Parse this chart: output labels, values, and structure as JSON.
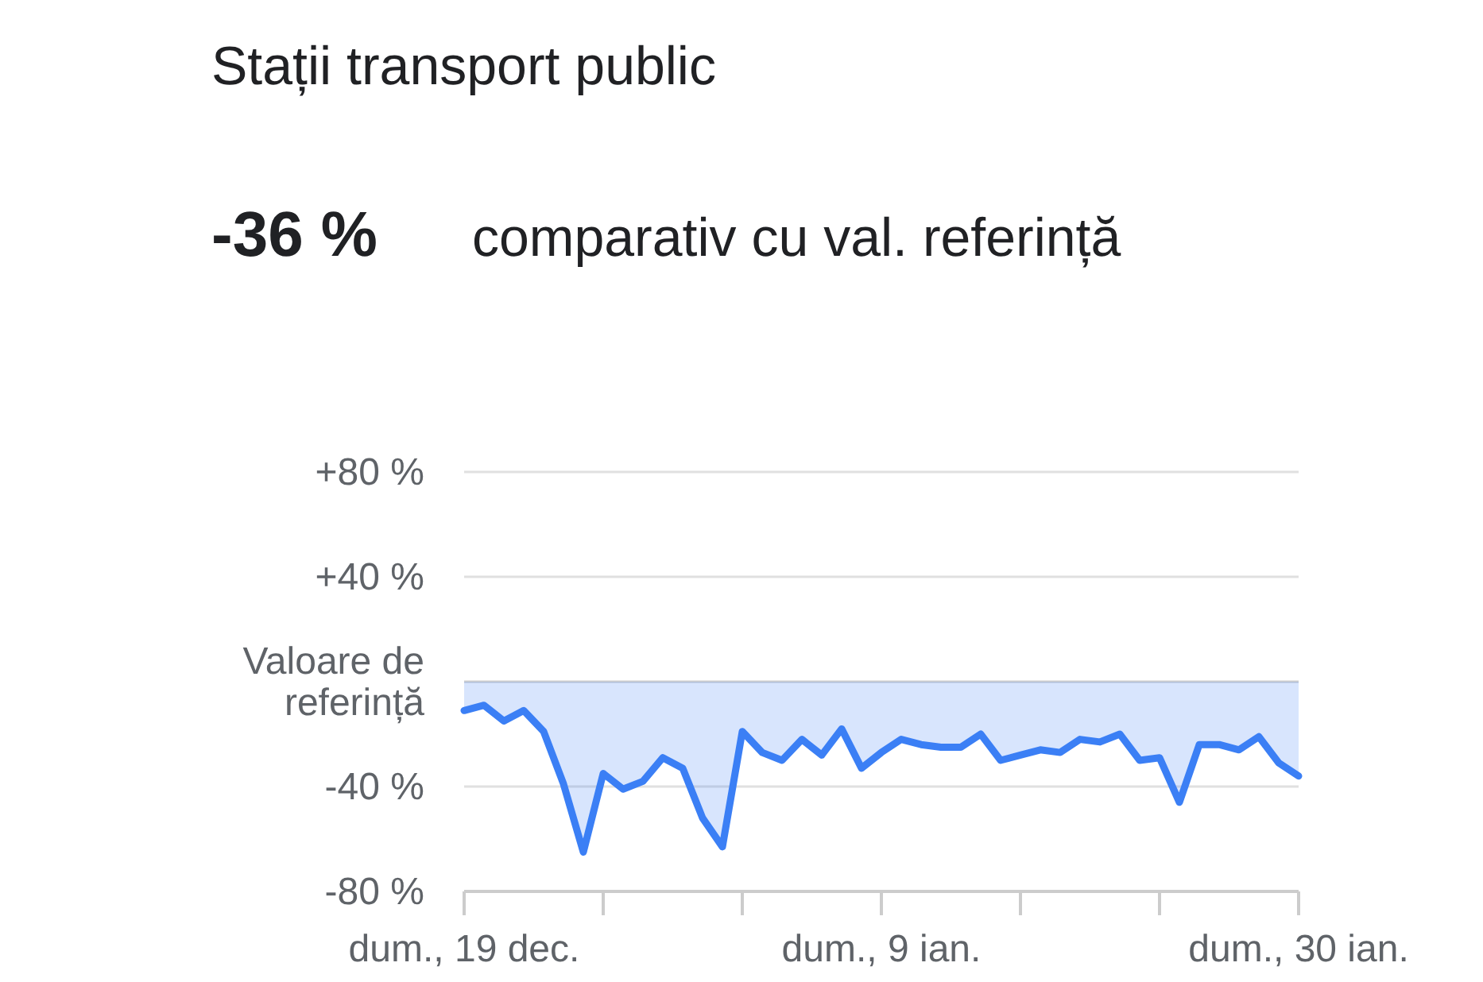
{
  "chart_data": {
    "type": "area",
    "title": "Stații transport public",
    "subtitle": "comparativ cu val. referință",
    "annotations": [
      "-36 %"
    ],
    "categories": [
      "dum., 19 dec.",
      null,
      null,
      null,
      null,
      null,
      null,
      null,
      null,
      null,
      null,
      null,
      null,
      null,
      null,
      null,
      null,
      null,
      null,
      null,
      null,
      "dum., 9 ian.",
      null,
      null,
      null,
      null,
      null,
      null,
      null,
      null,
      null,
      null,
      null,
      null,
      null,
      null,
      null,
      null,
      null,
      null,
      null,
      null,
      "dum., 30 ian."
    ],
    "series": [
      {
        "color": "#3b7ff5",
        "values": [
          -11,
          -9,
          -15,
          -11,
          -19,
          -39,
          -65,
          -35,
          -41,
          -38,
          -29,
          -33,
          -52,
          -63,
          -19,
          -27,
          -30,
          -22,
          -28,
          -18,
          -33,
          -27,
          -22,
          -24,
          -25,
          -25,
          -20,
          -30,
          -28,
          -26,
          -27,
          -22,
          -23,
          -20,
          -30,
          -29,
          -46,
          -24,
          -24,
          -26,
          -21,
          -31,
          -36
        ]
      }
    ],
    "ylim": [
      -80,
      80
    ],
    "yticks": [
      {
        "value": -80,
        "label": "-80 %"
      },
      {
        "value": -40,
        "label": "-40 %"
      },
      {
        "value": 0,
        "label": "Valoare de referință"
      },
      {
        "value": 40,
        "label": "+40 %"
      },
      {
        "value": 80,
        "label": "+80 %"
      }
    ],
    "grid": "y"
  }
}
